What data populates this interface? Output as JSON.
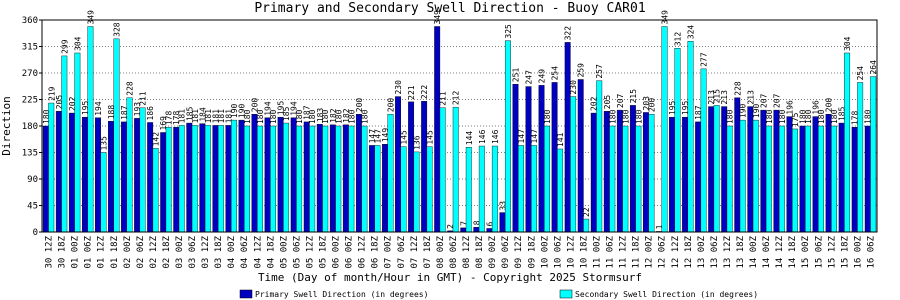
{
  "chart_data": {
    "type": "bar",
    "title": "Primary and Secondary Swell Direction - Buoy CAR01",
    "x_label": "Time (Day of month/Hour in GMT) - Copyright 2025 Stormsurf",
    "y_label": "Direction",
    "categories": [
      "30 12Z",
      "30 18Z",
      "01 00Z",
      "01 06Z",
      "01 12Z",
      "01 18Z",
      "02 00Z",
      "02 06Z",
      "02 12Z",
      "02 18Z",
      "03 00Z",
      "03 06Z",
      "03 12Z",
      "03 18Z",
      "04 00Z",
      "04 06Z",
      "04 12Z",
      "04 18Z",
      "05 00Z",
      "05 06Z",
      "05 12Z",
      "05 18Z",
      "06 00Z",
      "06 06Z",
      "06 12Z",
      "06 18Z",
      "07 00Z",
      "07 06Z",
      "07 12Z",
      "07 18Z",
      "08 00Z",
      "08 06Z",
      "08 12Z",
      "08 18Z",
      "09 00Z",
      "09 06Z",
      "09 12Z",
      "09 18Z",
      "10 00Z",
      "10 06Z",
      "10 12Z",
      "10 18Z",
      "11 00Z",
      "11 06Z",
      "11 12Z",
      "11 18Z",
      "12 00Z",
      "12 06Z",
      "12 12Z",
      "12 18Z",
      "13 00Z",
      "13 06Z",
      "13 12Z",
      "13 18Z",
      "14 00Z",
      "14 06Z",
      "14 12Z",
      "14 18Z",
      "15 00Z",
      "15 06Z",
      "15 12Z",
      "15 18Z",
      "16 00Z",
      "16 06Z"
    ],
    "series": [
      {
        "name": "Primary Swell Direction (in degrees)",
        "color": "#0000c0",
        "values": [
          180,
          205,
          202,
          195,
          194,
          188,
          187,
          193,
          186,
          169,
          178,
          185,
          184,
          181,
          181,
          190,
          200,
          194,
          195,
          194,
          187,
          183,
          182,
          182,
          200,
          147,
          149,
          230,
          221,
          222,
          349,
          2,
          7,
          8,
          6,
          33,
          251,
          247,
          249,
          254,
          322,
          259,
          202,
          205,
          207,
          215,
          203,
          1,
          195,
          195,
          187,
          213,
          213,
          228,
          213,
          207,
          207,
          196,
          180,
          196,
          200,
          185,
          178,
          180
        ]
      },
      {
        "name": "Secondary Swell Direction (in degrees)",
        "color": "#00ffff",
        "values": [
          219,
          299,
          304,
          349,
          135,
          328,
          228,
          211,
          142,
          178,
          181,
          181,
          181,
          181,
          190,
          180,
          180,
          180,
          185,
          180,
          180,
          180,
          180,
          180,
          180,
          147,
          200,
          145,
          136,
          145,
          211,
          212,
          144,
          146,
          146,
          325,
          147,
          147,
          180,
          141,
          230,
          22,
          257,
          180,
          180,
          180,
          200,
          349,
          312,
          324,
          277,
          215,
          180,
          190,
          190,
          180,
          180,
          175,
          180,
          180,
          180,
          304,
          254,
          264
        ]
      }
    ],
    "ylim": [
      0,
      360
    ],
    "yticks": [
      0,
      45,
      90,
      135,
      180,
      225,
      270,
      315,
      360
    ],
    "grid": true
  }
}
